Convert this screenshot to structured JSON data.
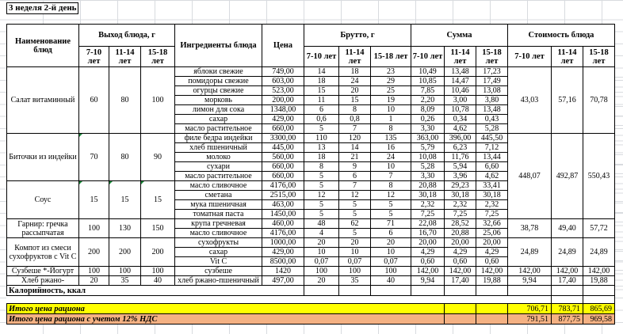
{
  "title": "3 неделя 2-й день",
  "header": {
    "name": "Наименование блюд",
    "output": "Выход блюда, г",
    "ingredients": "Ингредиенты блюда",
    "price": "Цена",
    "gross": "Брутто, г",
    "sum": "Сумма",
    "cost": "Стоимость блюда",
    "age_groups": [
      "7-10 лет",
      "11-14 лет",
      "15-18 лет"
    ]
  },
  "dishes": [
    {
      "name": "Салат витаминный",
      "output": [
        "60",
        "80",
        "100"
      ],
      "output_markers": [
        false,
        false,
        false
      ],
      "cost": [
        "43,03",
        "57,16",
        "70,78"
      ],
      "cost_rows": 7,
      "ingredients": [
        {
          "name": "яблоки свежие",
          "price": "749,00",
          "gross": [
            "14",
            "18",
            "23"
          ],
          "sum": [
            "10,49",
            "13,48",
            "17,23"
          ]
        },
        {
          "name": "помидоры свежие",
          "price": "603,00",
          "gross": [
            "18",
            "24",
            "29"
          ],
          "sum": [
            "10,85",
            "14,47",
            "17,49"
          ]
        },
        {
          "name": "огурцы свежие",
          "price": "523,00",
          "gross": [
            "15",
            "20",
            "25"
          ],
          "sum": [
            "7,85",
            "10,46",
            "13,08"
          ]
        },
        {
          "name": "морковь",
          "price": "200,00",
          "gross": [
            "11",
            "15",
            "19"
          ],
          "sum": [
            "2,20",
            "3,00",
            "3,80"
          ]
        },
        {
          "name": "лимон для сока",
          "price": "1348,00",
          "gross": [
            "6",
            "8",
            "10"
          ],
          "sum": [
            "8,09",
            "10,78",
            "13,48"
          ]
        },
        {
          "name": "сахар",
          "price": "429,00",
          "gross": [
            "0,6",
            "0,8",
            "1"
          ],
          "sum": [
            "0,26",
            "0,34",
            "0,43"
          ]
        },
        {
          "name": "масло растительное",
          "price": "660,00",
          "gross": [
            "5",
            "7",
            "8"
          ],
          "sum": [
            "3,30",
            "4,62",
            "5,28"
          ]
        }
      ]
    },
    {
      "name": "Биточки из индейки",
      "output": [
        "70",
        "80",
        "90"
      ],
      "output_markers": [
        true,
        false,
        false
      ],
      "cost": [
        "448,07",
        "492,87",
        "550,43"
      ],
      "cost_rows": 9,
      "ingredients": [
        {
          "name": "филе бедра индейки",
          "price": "3300,00",
          "gross": [
            "110",
            "120",
            "135"
          ],
          "sum": [
            "363,00",
            "396,00",
            "445,50"
          ]
        },
        {
          "name": "хлеб пшеничный",
          "price": "445,00",
          "gross": [
            "13",
            "14",
            "16"
          ],
          "sum": [
            "5,79",
            "6,23",
            "7,12"
          ]
        },
        {
          "name": "молоко",
          "price": "560,00",
          "gross": [
            "18",
            "21",
            "24"
          ],
          "sum": [
            "10,08",
            "11,76",
            "13,44"
          ]
        },
        {
          "name": "сухари",
          "price": "660,00",
          "gross": [
            "8",
            "9",
            "10"
          ],
          "sum": [
            "5,28",
            "5,94",
            "6,60"
          ]
        },
        {
          "name": "масло растительное",
          "price": "660,00",
          "gross": [
            "5",
            "6",
            "7"
          ],
          "sum": [
            "3,30",
            "3,96",
            "4,62"
          ]
        }
      ]
    },
    {
      "name": "Соус",
      "output": [
        "15",
        "15",
        "15"
      ],
      "output_markers": [
        true,
        true,
        true
      ],
      "cost": null,
      "cost_rows": 0,
      "ingredients": [
        {
          "name": "масло сливочное",
          "price": "4176,00",
          "gross": [
            "5",
            "7",
            "8"
          ],
          "sum": [
            "20,88",
            "29,23",
            "33,41"
          ]
        },
        {
          "name": "сметана",
          "price": "2515,00",
          "gross": [
            "12",
            "12",
            "12"
          ],
          "sum": [
            "30,18",
            "30,18",
            "30,18"
          ]
        },
        {
          "name": "мука пшеничная",
          "price": "463,00",
          "gross": [
            "5",
            "5",
            "5"
          ],
          "sum": [
            "2,32",
            "2,32",
            "2,32"
          ]
        },
        {
          "name": "томатная паста",
          "price": "1450,00",
          "gross": [
            "5",
            "5",
            "5"
          ],
          "sum": [
            "7,25",
            "7,25",
            "7,25"
          ]
        }
      ]
    },
    {
      "name": "Гарнир: гречка рассыпчатая",
      "output": [
        "100",
        "130",
        "150"
      ],
      "output_markers": [
        false,
        false,
        false
      ],
      "cost": [
        "38,78",
        "49,40",
        "57,72"
      ],
      "cost_rows": 2,
      "ingredients": [
        {
          "name": "крупа гречневая",
          "price": "460,00",
          "gross": [
            "48",
            "62",
            "71"
          ],
          "sum": [
            "22,08",
            "28,52",
            "32,66"
          ]
        },
        {
          "name": "масло сливочное",
          "price": "4176,00",
          "gross": [
            "4",
            "5",
            "6"
          ],
          "sum": [
            "16,70",
            "20,88",
            "25,06"
          ]
        }
      ]
    },
    {
      "name": "Компот из смеси сухофруктов с Vit C",
      "output": [
        "200",
        "200",
        "200"
      ],
      "output_markers": [
        false,
        false,
        false
      ],
      "cost": [
        "24,89",
        "24,89",
        "24,89"
      ],
      "cost_rows": 3,
      "ingredients": [
        {
          "name": "сухофрукты",
          "price": "1000,00",
          "gross": [
            "20",
            "20",
            "20"
          ],
          "sum": [
            "20,00",
            "20,00",
            "20,00"
          ]
        },
        {
          "name": "сахар",
          "price": "429,00",
          "gross": [
            "10",
            "10",
            "10"
          ],
          "sum": [
            "4,29",
            "4,29",
            "4,29"
          ]
        },
        {
          "name": "Vit C",
          "price": "8500,00",
          "gross": [
            "0,07",
            "0,07",
            "0,07"
          ],
          "sum": [
            "0,60",
            "0,60",
            "0,60"
          ]
        }
      ]
    },
    {
      "name": "Сузбеше *-Йогурт",
      "output": [
        "100",
        "100",
        "100"
      ],
      "output_markers": [
        false,
        false,
        false
      ],
      "cost": [
        "142,00",
        "142,00",
        "142,00"
      ],
      "cost_rows": 1,
      "ingredients": [
        {
          "name": "сузбеше",
          "price": "1420",
          "gross": [
            "100",
            "100",
            "100"
          ],
          "sum": [
            "142,00",
            "142,00",
            "142,00"
          ]
        }
      ]
    },
    {
      "name": "Хлеб ржано-",
      "output": [
        "20",
        "35",
        "40"
      ],
      "output_markers": [
        false,
        false,
        false
      ],
      "cost": [
        "9,94",
        "17,40",
        "19,88"
      ],
      "cost_rows": 1,
      "ingredients": [
        {
          "name": "хлеб ржано-пшеничный",
          "price": "497,00",
          "gross": [
            "20",
            "35",
            "40"
          ],
          "sum": [
            "9,94",
            "17,40",
            "19,88"
          ]
        }
      ]
    }
  ],
  "kcal_label": "Калорийность, ккал",
  "totals": [
    {
      "label": "Итого цена рациона",
      "values": [
        "706,71",
        "783,71",
        "865,69"
      ],
      "color": "#ffff00"
    },
    {
      "label": "Итого цена рациона с учетом 12% НДС",
      "values": [
        "791,51",
        "877,75",
        "969,58"
      ],
      "color": "#f4b183"
    }
  ],
  "colors": {
    "comment_indicator": "#1e8a3c",
    "grid_line": "#d8dbdf",
    "border": "#000000"
  }
}
